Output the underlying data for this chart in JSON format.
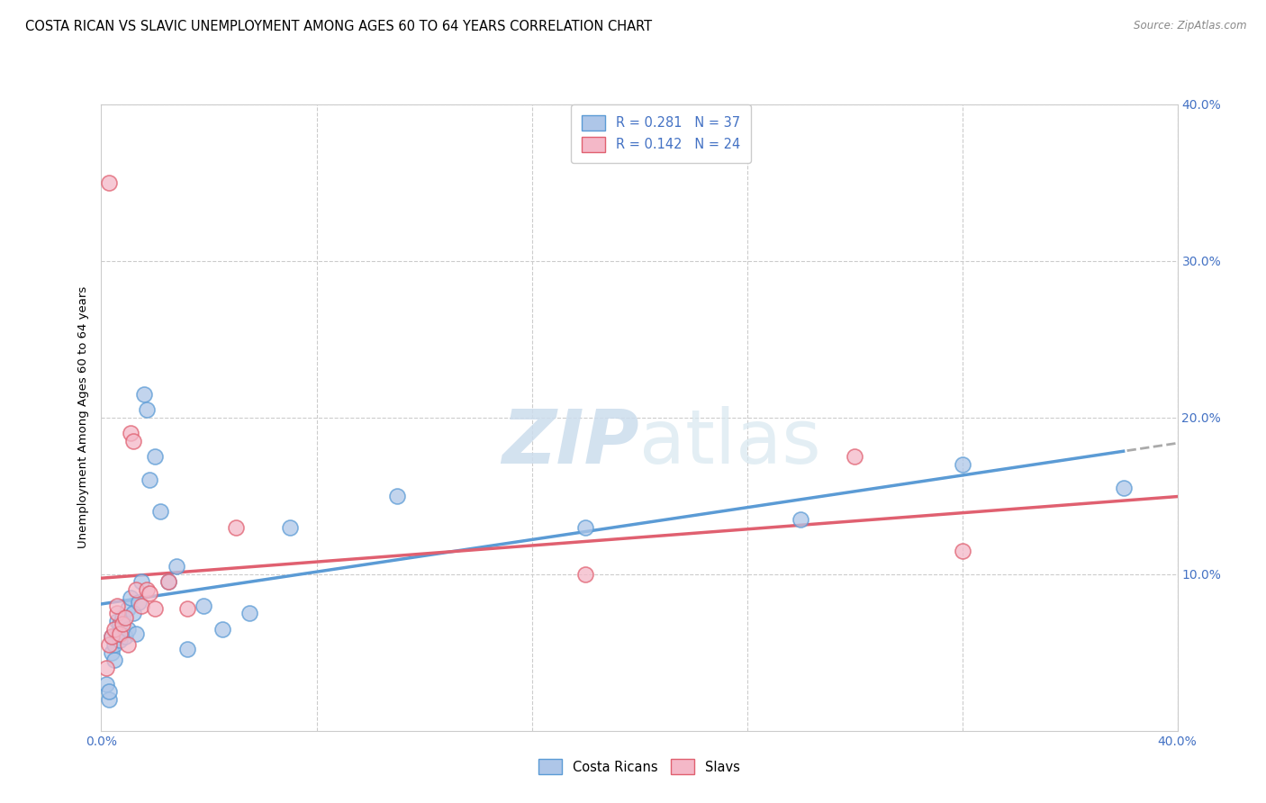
{
  "title": "COSTA RICAN VS SLAVIC UNEMPLOYMENT AMONG AGES 60 TO 64 YEARS CORRELATION CHART",
  "source": "Source: ZipAtlas.com",
  "ylabel": "Unemployment Among Ages 60 to 64 years",
  "xlim": [
    0.0,
    0.4
  ],
  "ylim": [
    0.0,
    0.4
  ],
  "xtick_positions": [
    0.0,
    0.08,
    0.16,
    0.24,
    0.32,
    0.4
  ],
  "ytick_positions": [
    0.0,
    0.1,
    0.2,
    0.3,
    0.4
  ],
  "blue_color": "#5b9bd5",
  "pink_color": "#e06070",
  "blue_fill": "#aec6e8",
  "pink_fill": "#f4b8c8",
  "cr_R": 0.281,
  "cr_N": 37,
  "sl_R": 0.142,
  "sl_N": 24,
  "costa_rican_x": [
    0.002,
    0.003,
    0.003,
    0.004,
    0.004,
    0.005,
    0.005,
    0.006,
    0.006,
    0.007,
    0.007,
    0.008,
    0.009,
    0.01,
    0.01,
    0.011,
    0.012,
    0.013,
    0.014,
    0.015,
    0.016,
    0.017,
    0.018,
    0.02,
    0.022,
    0.025,
    0.028,
    0.032,
    0.038,
    0.045,
    0.055,
    0.07,
    0.11,
    0.18,
    0.26,
    0.32,
    0.38
  ],
  "costa_rican_y": [
    0.03,
    0.02,
    0.025,
    0.05,
    0.06,
    0.045,
    0.055,
    0.07,
    0.062,
    0.058,
    0.068,
    0.072,
    0.06,
    0.078,
    0.065,
    0.085,
    0.075,
    0.062,
    0.082,
    0.095,
    0.215,
    0.205,
    0.16,
    0.175,
    0.14,
    0.095,
    0.105,
    0.052,
    0.08,
    0.065,
    0.075,
    0.13,
    0.15,
    0.13,
    0.135,
    0.17,
    0.155
  ],
  "slavic_x": [
    0.002,
    0.003,
    0.004,
    0.005,
    0.006,
    0.006,
    0.007,
    0.008,
    0.009,
    0.01,
    0.011,
    0.012,
    0.013,
    0.015,
    0.017,
    0.018,
    0.02,
    0.025,
    0.032,
    0.05,
    0.003,
    0.18,
    0.28,
    0.32
  ],
  "slavic_y": [
    0.04,
    0.055,
    0.06,
    0.065,
    0.075,
    0.08,
    0.062,
    0.068,
    0.072,
    0.055,
    0.19,
    0.185,
    0.09,
    0.08,
    0.09,
    0.088,
    0.078,
    0.095,
    0.078,
    0.13,
    0.35,
    0.1,
    0.175,
    0.115
  ]
}
